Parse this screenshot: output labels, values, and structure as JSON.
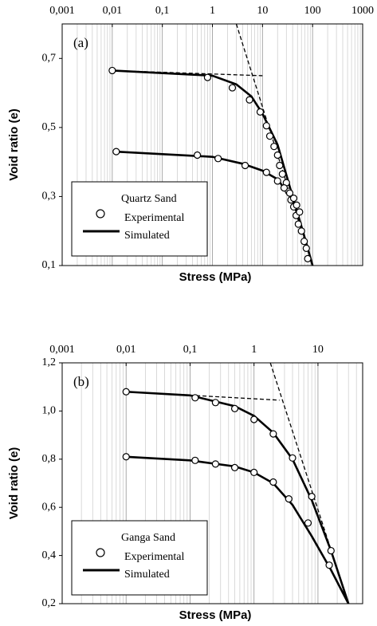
{
  "chart_data": [
    {
      "type": "line",
      "panel_label": "(a)",
      "x_label": "Stress (MPa)",
      "y_label": "Void ratio (e)",
      "x_scale": "log",
      "grid": "x",
      "legend_title": "Quartz Sand",
      "xlim": [
        0.001,
        1000
      ],
      "xticks": [
        {
          "value": 0.001,
          "label": "0,001"
        },
        {
          "value": 0.01,
          "label": "0,01"
        },
        {
          "value": 0.1,
          "label": "0,1"
        },
        1,
        10,
        100,
        1000
      ],
      "ylim": [
        0.1,
        0.8
      ],
      "yticks": [
        {
          "value": 0.1,
          "label": "0,1"
        },
        {
          "value": 0.3,
          "label": "0,3"
        },
        {
          "value": 0.5,
          "label": "0,5"
        },
        {
          "value": 0.7,
          "label": "0,7"
        }
      ],
      "series": [
        {
          "name": "Experimental",
          "style": "marker",
          "color": "#000000",
          "x": [
            0.01,
            0.8,
            2.5,
            5.5,
            9,
            12,
            14,
            17,
            20,
            22,
            25,
            30,
            33,
            37,
            42,
            47,
            52,
            60,
            68,
            75,
            80,
            0.012,
            0.5,
            1.3,
            4.5,
            12,
            20,
            27,
            35,
            42,
            48,
            55
          ],
          "values": [
            0.665,
            0.645,
            0.615,
            0.58,
            0.545,
            0.505,
            0.475,
            0.445,
            0.42,
            0.39,
            0.365,
            0.34,
            0.315,
            0.29,
            0.27,
            0.245,
            0.22,
            0.2,
            0.17,
            0.15,
            0.12,
            0.43,
            0.42,
            0.41,
            0.39,
            0.37,
            0.345,
            0.325,
            0.31,
            0.295,
            0.275,
            0.255
          ]
        },
        {
          "name": "Simulated",
          "style": "line",
          "color": "#000000",
          "x": [
            0.01,
            1,
            3,
            6,
            10,
            20,
            40,
            70,
            100,
            null,
            0.012,
            1,
            4,
            10,
            20,
            40,
            70,
            100
          ],
          "values": [
            0.665,
            0.65,
            0.625,
            0.59,
            0.54,
            0.45,
            0.3,
            0.18,
            0.1,
            null,
            0.43,
            0.415,
            0.395,
            0.375,
            0.35,
            0.29,
            0.18,
            0.1
          ]
        }
      ],
      "reference_lines": [
        {
          "x": [
            0.01,
            10
          ],
          "values": [
            0.665,
            0.65
          ]
        },
        {
          "x": [
            3,
            100
          ],
          "values": [
            0.8,
            0.1
          ]
        }
      ]
    },
    {
      "type": "line",
      "panel_label": "(b)",
      "x_label": "Stress (MPa)",
      "y_label": "Void ratio (e)",
      "x_scale": "log",
      "grid": "x",
      "legend_title": "Ganga Sand",
      "xlim": [
        0.001,
        50
      ],
      "xticks": [
        {
          "value": 0.001,
          "label": "0,001"
        },
        {
          "value": 0.01,
          "label": "0,01"
        },
        {
          "value": 0.1,
          "label": "0,1"
        },
        1,
        10
      ],
      "ylim": [
        0.2,
        1.2
      ],
      "yticks": [
        {
          "value": 0.2,
          "label": "0,2"
        },
        {
          "value": 0.4,
          "label": "0,4"
        },
        {
          "value": 0.6,
          "label": "0,6"
        },
        {
          "value": 0.8,
          "label": "0,8"
        },
        {
          "value": 1.0,
          "label": "1,0"
        },
        {
          "value": 1.2,
          "label": "1,2"
        }
      ],
      "series": [
        {
          "name": "Experimental",
          "style": "marker",
          "color": "#000000",
          "x": [
            0.01,
            0.12,
            0.25,
            0.5,
            1.0,
            2,
            4,
            8,
            16,
            0.01,
            0.12,
            0.25,
            0.5,
            1.0,
            2,
            3.5,
            7,
            15
          ],
          "values": [
            1.08,
            1.055,
            1.035,
            1.01,
            0.965,
            0.905,
            0.805,
            0.645,
            0.42,
            0.81,
            0.795,
            0.78,
            0.765,
            0.745,
            0.705,
            0.635,
            0.535,
            0.36
          ]
        },
        {
          "name": "Simulated",
          "style": "line",
          "color": "#000000",
          "x": [
            0.01,
            0.1,
            0.5,
            1,
            2,
            4,
            8,
            16,
            30,
            null,
            0.01,
            0.1,
            0.5,
            1,
            2,
            4,
            8,
            16,
            30
          ],
          "values": [
            1.08,
            1.065,
            1.02,
            0.98,
            0.91,
            0.8,
            0.63,
            0.42,
            0.2,
            null,
            0.81,
            0.795,
            0.77,
            0.745,
            0.7,
            0.61,
            0.48,
            0.34,
            0.2
          ]
        }
      ],
      "reference_lines": [
        {
          "x": [
            0.01,
            2.5
          ],
          "values": [
            1.08,
            1.045
          ]
        },
        {
          "x": [
            1.8,
            30
          ],
          "values": [
            1.2,
            0.2
          ]
        }
      ]
    }
  ]
}
